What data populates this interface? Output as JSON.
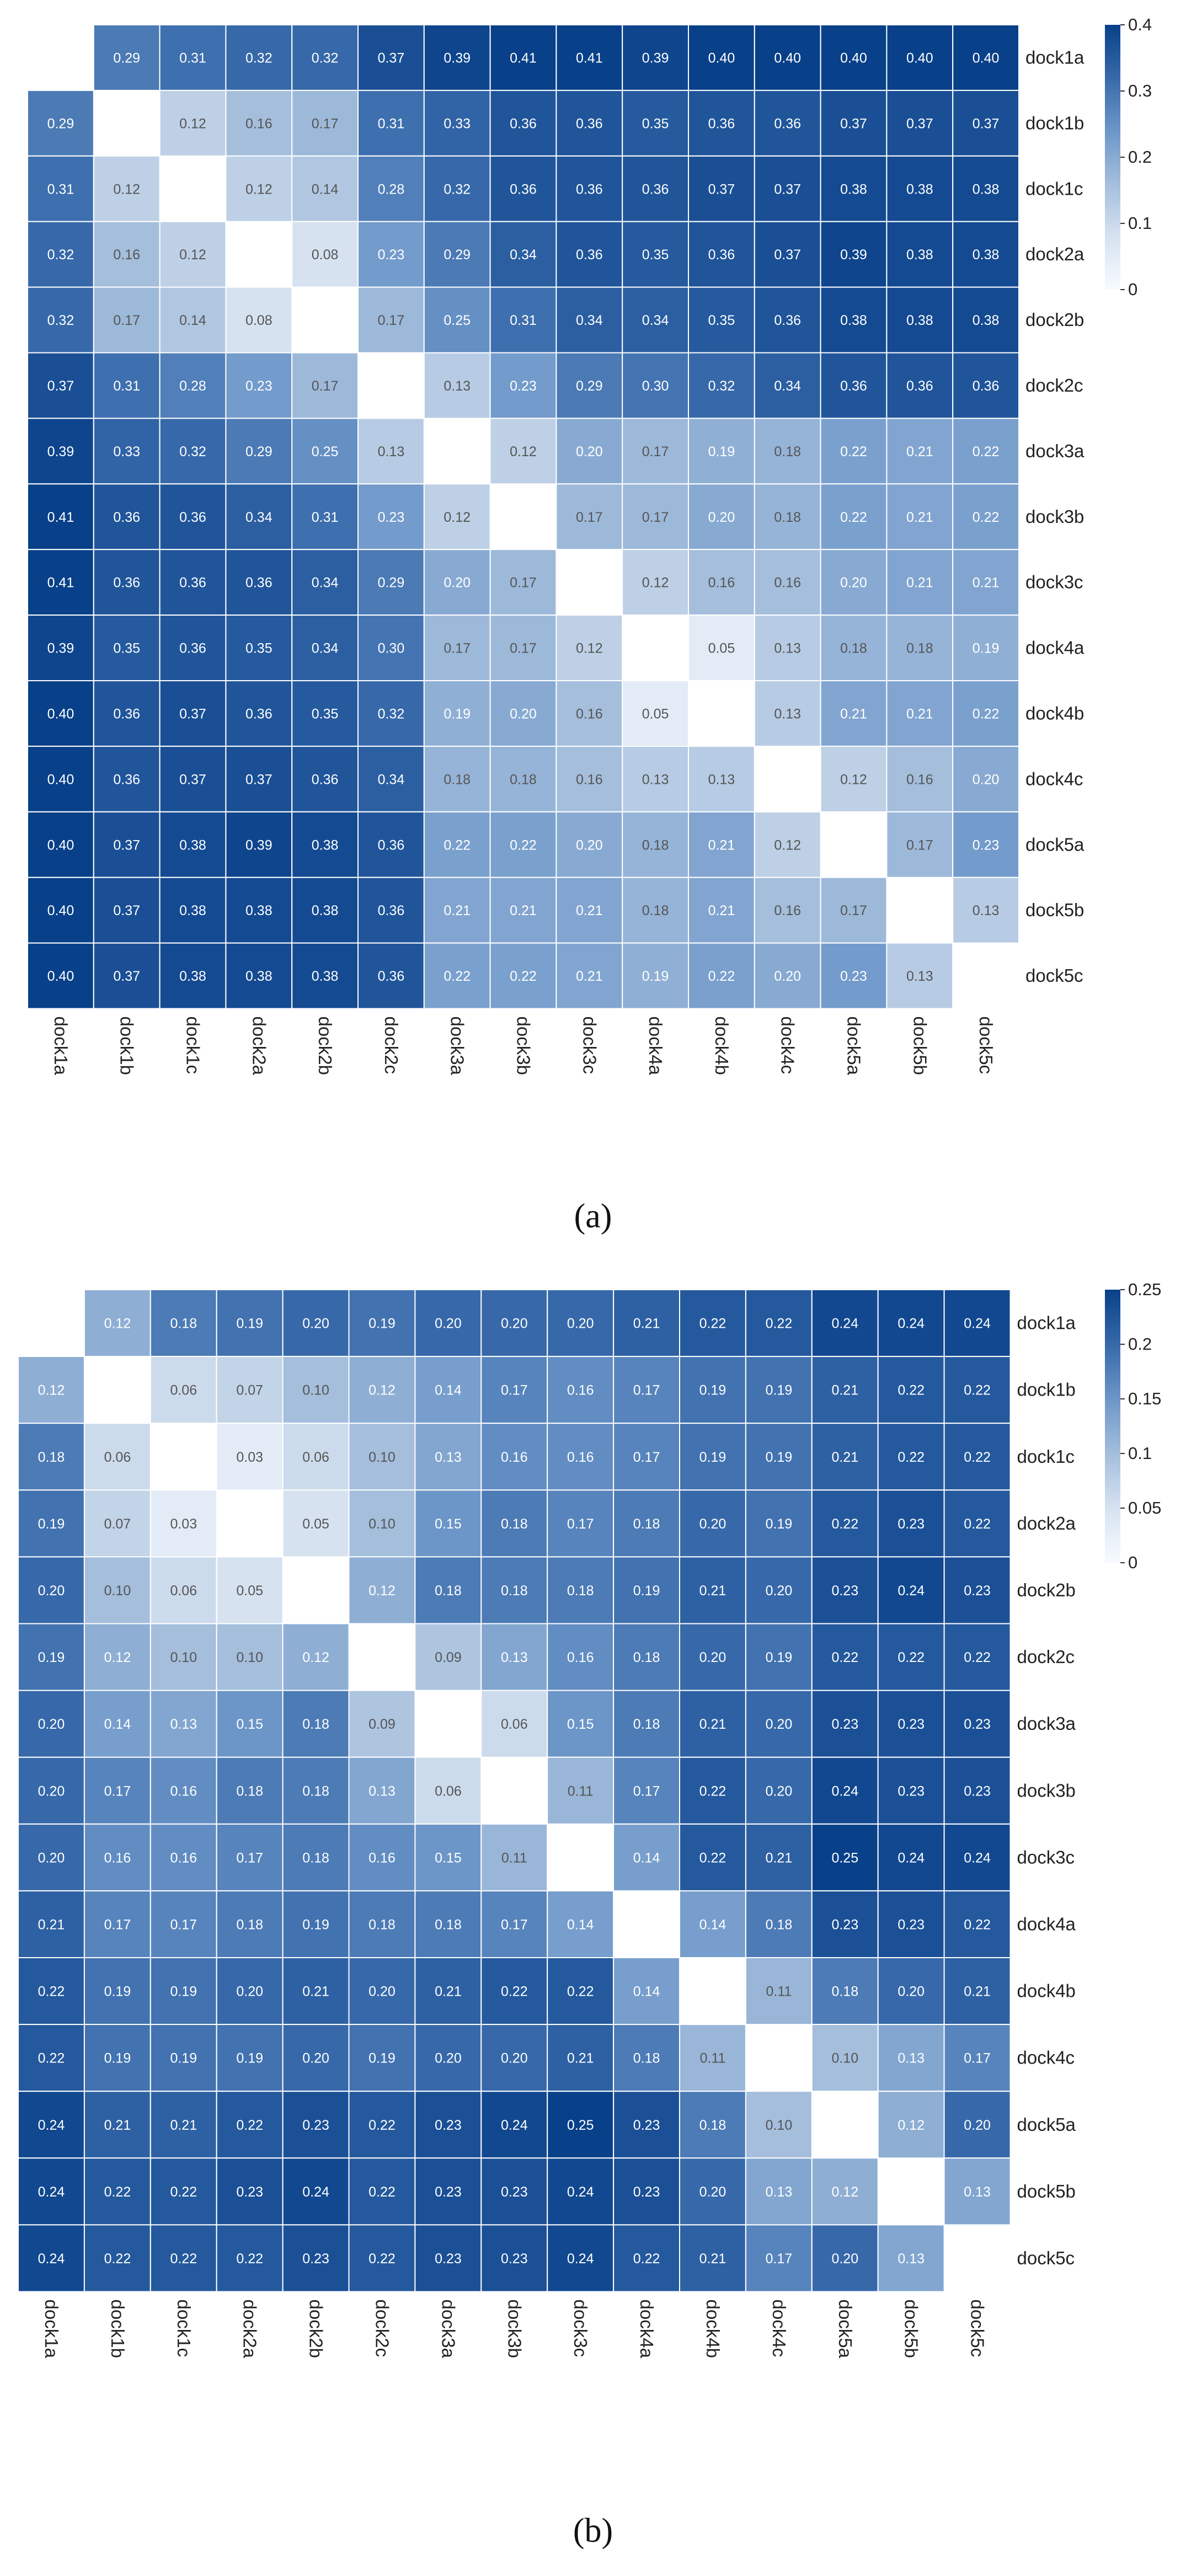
{
  "chart_data": [
    {
      "type": "heatmap",
      "panel": "a",
      "caption": "(a)",
      "labels": [
        "dock1a",
        "dock1b",
        "dock1c",
        "dock2a",
        "dock2b",
        "dock2c",
        "dock3a",
        "dock3b",
        "dock3c",
        "dock4a",
        "dock4b",
        "dock4c",
        "dock5a",
        "dock5b",
        "dock5c"
      ],
      "colorbar": {
        "min": 0,
        "max": 0.4,
        "ticks": [
          "0.4",
          "0.3",
          "0.2",
          "0.1",
          "0"
        ],
        "tick_values": [
          0.4,
          0.3,
          0.2,
          0.1,
          0
        ]
      },
      "matrix": [
        [
          null,
          0.29,
          0.31,
          0.32,
          0.32,
          0.37,
          0.39,
          0.41,
          0.41,
          0.39,
          0.4,
          0.4,
          0.4,
          0.4,
          0.4
        ],
        [
          0.29,
          null,
          0.12,
          0.16,
          0.17,
          0.31,
          0.33,
          0.36,
          0.36,
          0.35,
          0.36,
          0.36,
          0.37,
          0.37,
          0.37
        ],
        [
          0.31,
          0.12,
          null,
          0.12,
          0.14,
          0.28,
          0.32,
          0.36,
          0.36,
          0.36,
          0.37,
          0.37,
          0.38,
          0.38,
          0.38
        ],
        [
          0.32,
          0.16,
          0.12,
          null,
          0.08,
          0.23,
          0.29,
          0.34,
          0.36,
          0.35,
          0.36,
          0.37,
          0.39,
          0.38,
          0.38
        ],
        [
          0.32,
          0.17,
          0.14,
          0.08,
          null,
          0.17,
          0.25,
          0.31,
          0.34,
          0.34,
          0.35,
          0.36,
          0.38,
          0.38,
          0.38
        ],
        [
          0.37,
          0.31,
          0.28,
          0.23,
          0.17,
          null,
          0.13,
          0.23,
          0.29,
          0.3,
          0.32,
          0.34,
          0.36,
          0.36,
          0.36
        ],
        [
          0.39,
          0.33,
          0.32,
          0.29,
          0.25,
          0.13,
          null,
          0.12,
          0.2,
          0.17,
          0.19,
          0.18,
          0.22,
          0.21,
          0.22
        ],
        [
          0.41,
          0.36,
          0.36,
          0.34,
          0.31,
          0.23,
          0.12,
          null,
          0.17,
          0.17,
          0.2,
          0.18,
          0.22,
          0.21,
          0.22
        ],
        [
          0.41,
          0.36,
          0.36,
          0.36,
          0.34,
          0.29,
          0.2,
          0.17,
          null,
          0.12,
          0.16,
          0.16,
          0.2,
          0.21,
          0.21
        ],
        [
          0.39,
          0.35,
          0.36,
          0.35,
          0.34,
          0.3,
          0.17,
          0.17,
          0.12,
          null,
          0.05,
          0.13,
          0.18,
          0.18,
          0.19
        ],
        [
          0.4,
          0.36,
          0.37,
          0.36,
          0.35,
          0.32,
          0.19,
          0.2,
          0.16,
          0.05,
          null,
          0.13,
          0.21,
          0.21,
          0.22
        ],
        [
          0.4,
          0.36,
          0.37,
          0.37,
          0.36,
          0.34,
          0.18,
          0.18,
          0.16,
          0.13,
          0.13,
          null,
          0.12,
          0.16,
          0.2
        ],
        [
          0.4,
          0.37,
          0.38,
          0.39,
          0.38,
          0.36,
          0.22,
          0.22,
          0.2,
          0.18,
          0.21,
          0.12,
          null,
          0.17,
          0.23
        ],
        [
          0.4,
          0.37,
          0.38,
          0.38,
          0.38,
          0.36,
          0.21,
          0.21,
          0.21,
          0.18,
          0.21,
          0.16,
          0.17,
          null,
          0.13
        ],
        [
          0.4,
          0.37,
          0.38,
          0.38,
          0.38,
          0.36,
          0.22,
          0.22,
          0.21,
          0.19,
          0.22,
          0.2,
          0.23,
          0.13,
          null
        ]
      ]
    },
    {
      "type": "heatmap",
      "panel": "b",
      "caption": "(b)",
      "labels": [
        "dock1a",
        "dock1b",
        "dock1c",
        "dock2a",
        "dock2b",
        "dock2c",
        "dock3a",
        "dock3b",
        "dock3c",
        "dock4a",
        "dock4b",
        "dock4c",
        "dock5a",
        "dock5b",
        "dock5c"
      ],
      "colorbar": {
        "min": 0,
        "max": 0.25,
        "ticks": [
          "0.25",
          "0.2",
          "0.15",
          "0.1",
          "0.05",
          "0"
        ],
        "tick_values": [
          0.25,
          0.2,
          0.15,
          0.1,
          0.05,
          0
        ]
      },
      "matrix": [
        [
          null,
          0.12,
          0.18,
          0.19,
          0.2,
          0.19,
          0.2,
          0.2,
          0.2,
          0.21,
          0.22,
          0.22,
          0.24,
          0.24,
          0.24
        ],
        [
          0.12,
          null,
          0.06,
          0.07,
          0.1,
          0.12,
          0.14,
          0.17,
          0.16,
          0.17,
          0.19,
          0.19,
          0.21,
          0.22,
          0.22
        ],
        [
          0.18,
          0.06,
          null,
          0.03,
          0.06,
          0.1,
          0.13,
          0.16,
          0.16,
          0.17,
          0.19,
          0.19,
          0.21,
          0.22,
          0.22
        ],
        [
          0.19,
          0.07,
          0.03,
          null,
          0.05,
          0.1,
          0.15,
          0.18,
          0.17,
          0.18,
          0.2,
          0.19,
          0.22,
          0.23,
          0.22
        ],
        [
          0.2,
          0.1,
          0.06,
          0.05,
          null,
          0.12,
          0.18,
          0.18,
          0.18,
          0.19,
          0.21,
          0.2,
          0.23,
          0.24,
          0.23
        ],
        [
          0.19,
          0.12,
          0.1,
          0.1,
          0.12,
          null,
          0.09,
          0.13,
          0.16,
          0.18,
          0.2,
          0.19,
          0.22,
          0.22,
          0.22
        ],
        [
          0.2,
          0.14,
          0.13,
          0.15,
          0.18,
          0.09,
          null,
          0.06,
          0.15,
          0.18,
          0.21,
          0.2,
          0.23,
          0.23,
          0.23
        ],
        [
          0.2,
          0.17,
          0.16,
          0.18,
          0.18,
          0.13,
          0.06,
          null,
          0.11,
          0.17,
          0.22,
          0.2,
          0.24,
          0.23,
          0.23
        ],
        [
          0.2,
          0.16,
          0.16,
          0.17,
          0.18,
          0.16,
          0.15,
          0.11,
          null,
          0.14,
          0.22,
          0.21,
          0.25,
          0.24,
          0.24
        ],
        [
          0.21,
          0.17,
          0.17,
          0.18,
          0.19,
          0.18,
          0.18,
          0.17,
          0.14,
          null,
          0.14,
          0.18,
          0.23,
          0.23,
          0.22
        ],
        [
          0.22,
          0.19,
          0.19,
          0.2,
          0.21,
          0.2,
          0.21,
          0.22,
          0.22,
          0.14,
          null,
          0.11,
          0.18,
          0.2,
          0.21
        ],
        [
          0.22,
          0.19,
          0.19,
          0.19,
          0.2,
          0.19,
          0.2,
          0.2,
          0.21,
          0.18,
          0.11,
          null,
          0.1,
          0.13,
          0.17
        ],
        [
          0.24,
          0.21,
          0.21,
          0.22,
          0.23,
          0.22,
          0.23,
          0.24,
          0.25,
          0.23,
          0.18,
          0.1,
          null,
          0.12,
          0.2
        ],
        [
          0.24,
          0.22,
          0.22,
          0.23,
          0.24,
          0.22,
          0.23,
          0.23,
          0.24,
          0.23,
          0.2,
          0.13,
          0.12,
          null,
          0.13
        ],
        [
          0.24,
          0.22,
          0.22,
          0.22,
          0.23,
          0.22,
          0.23,
          0.23,
          0.24,
          0.22,
          0.21,
          0.17,
          0.2,
          0.13,
          null
        ]
      ]
    }
  ]
}
